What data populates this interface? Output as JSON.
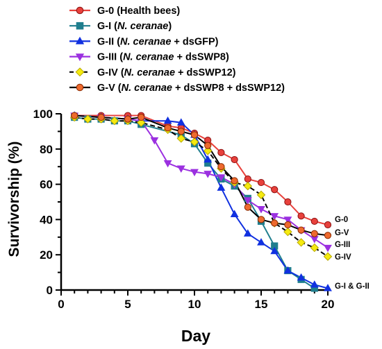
{
  "chart_data": {
    "type": "line",
    "xlabel": "Day",
    "ylabel": "Survivorship (%)",
    "xlim": [
      0,
      20
    ],
    "ylim": [
      0,
      100
    ],
    "xticks": [
      0,
      5,
      10,
      15,
      20
    ],
    "yticks": [
      0,
      20,
      40,
      60,
      80,
      100
    ],
    "grid": false,
    "legend_position": "top",
    "series": [
      {
        "name": "G-0 (Health bees)",
        "legend_parts": [
          {
            "t": "G-0 (Health bees)",
            "i": false
          }
        ],
        "end_label": "G-0",
        "color": "#e8413c",
        "fill": "#e8413c",
        "marker": "circle",
        "dash": false,
        "x": [
          1,
          3,
          5,
          6,
          8,
          9,
          10,
          11,
          12,
          13,
          14,
          15,
          16,
          17,
          18,
          19,
          20
        ],
        "values": [
          99,
          99,
          99,
          99,
          93,
          92,
          89,
          85,
          78,
          74,
          63,
          61,
          57,
          50,
          42,
          39,
          37
        ]
      },
      {
        "name": "G-I (N. ceranae)",
        "legend_parts": [
          {
            "t": "G-I (",
            "i": false
          },
          {
            "t": "N. ceranae",
            "i": true
          },
          {
            "t": ")",
            "i": false
          }
        ],
        "end_label": "",
        "color": "#1f7e8e",
        "fill": "#1f7e8e",
        "marker": "square",
        "dash": false,
        "x": [
          1,
          2,
          3,
          4,
          5,
          6,
          9,
          10,
          11,
          12,
          13,
          14,
          15,
          16,
          17,
          18,
          19
        ],
        "values": [
          98,
          97,
          97,
          96,
          96,
          94,
          88,
          83,
          72,
          63,
          59,
          52,
          39,
          25,
          11,
          6,
          1
        ]
      },
      {
        "name": "G-II (N. ceranae + dsGFP)",
        "legend_parts": [
          {
            "t": "G-II (",
            "i": false
          },
          {
            "t": "N. ceranae",
            "i": true
          },
          {
            "t": " + dsGFP)",
            "i": false
          }
        ],
        "end_label": "G-I & G-II",
        "color": "#1030e0",
        "fill": "#1030e0",
        "marker": "triangle",
        "dash": false,
        "x": [
          1,
          3,
          5,
          6,
          8,
          9,
          10,
          11,
          12,
          13,
          14,
          15,
          16,
          17,
          18,
          19,
          20
        ],
        "values": [
          99,
          98,
          97,
          96,
          96,
          95,
          88,
          74,
          58,
          43,
          32,
          27,
          22,
          11,
          7,
          3,
          1
        ]
      },
      {
        "name": "G-III (N. ceranae + dsSWP8)",
        "legend_parts": [
          {
            "t": "G-III (",
            "i": false
          },
          {
            "t": "N. ceranae",
            "i": true
          },
          {
            "t": " + dsSWP8)",
            "i": false
          }
        ],
        "end_label": "G-III",
        "color": "#9b30e0",
        "fill": "#9b30e0",
        "marker": "triangle-down",
        "dash": false,
        "x": [
          1,
          3,
          5,
          6,
          7,
          8,
          9,
          10,
          11,
          12,
          13,
          14,
          15,
          16,
          17,
          18,
          19,
          20
        ],
        "values": [
          99,
          98,
          97,
          96,
          85,
          72,
          69,
          67,
          66,
          64,
          60,
          51,
          46,
          42,
          40,
          34,
          29,
          24
        ]
      },
      {
        "name": "G-IV (N. ceranae + dsSWP12)",
        "legend_parts": [
          {
            "t": "G-IV (",
            "i": false
          },
          {
            "t": "N. ceranae",
            "i": true
          },
          {
            "t": " + dsSWP12)",
            "i": false
          }
        ],
        "end_label": "G-IV",
        "color": "#000000",
        "fill": "#f5ea10",
        "marker": "diamond",
        "dash": true,
        "x": [
          1,
          2,
          3,
          4,
          5,
          6,
          8,
          9,
          10,
          11,
          12,
          13,
          14,
          15,
          16,
          17,
          18,
          19,
          20
        ],
        "values": [
          98,
          97,
          97,
          96,
          96,
          95,
          91,
          86,
          84,
          79,
          69,
          61,
          59,
          54,
          38,
          33,
          27,
          24,
          19
        ]
      },
      {
        "name": "G-V (N. ceranae + dsSWP8 + dsSWP12)",
        "legend_parts": [
          {
            "t": "G-V (",
            "i": false
          },
          {
            "t": "N. ceranae",
            "i": true
          },
          {
            "t": " + dsSWP8 + dsSWP12)",
            "i": false
          }
        ],
        "end_label": "G-V",
        "color": "#000000",
        "fill": "#ee6a2e",
        "marker": "circle",
        "dash": false,
        "x": [
          1,
          3,
          5,
          6,
          8,
          9,
          10,
          11,
          12,
          13,
          14,
          15,
          16,
          17,
          18,
          19,
          20
        ],
        "values": [
          99,
          98,
          97,
          98,
          92,
          90,
          88,
          82,
          70,
          62,
          47,
          40,
          38,
          37,
          34,
          32,
          31
        ]
      }
    ]
  }
}
